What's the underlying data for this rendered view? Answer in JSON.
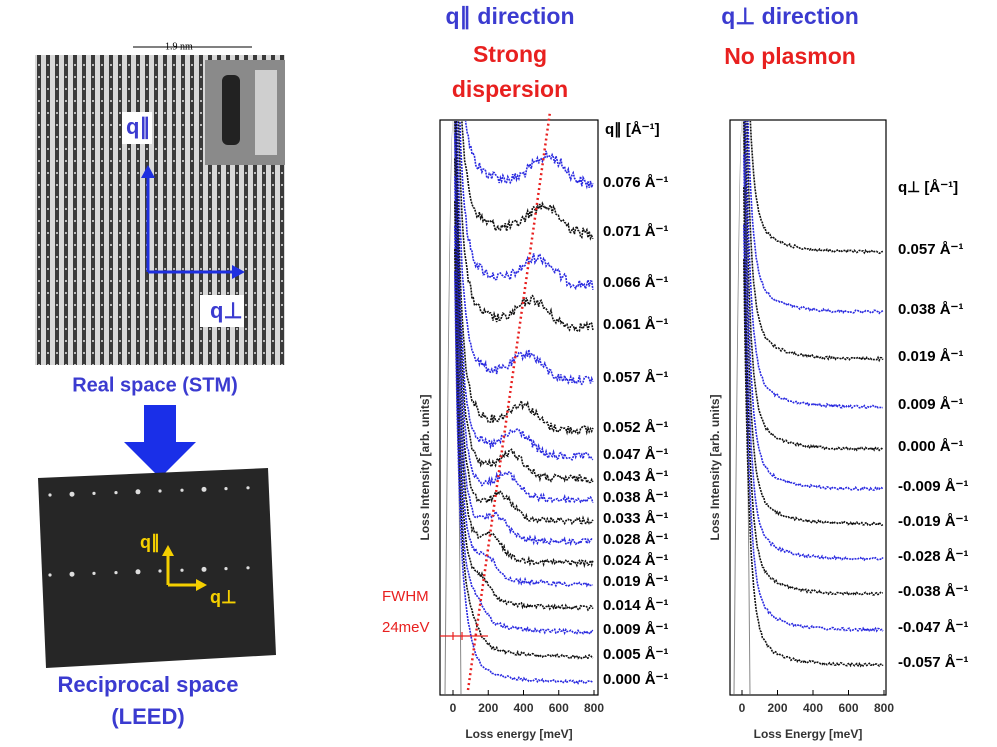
{
  "left": {
    "scale_bar": "1.9 nm",
    "q_par": "q∥",
    "q_perp": "q⊥",
    "real_space_label": "Real space (STM)",
    "leed_q_par": "q∥",
    "leed_q_perp": "q⊥",
    "reciprocal_label_1": "Reciprocal space",
    "reciprocal_label_2": "(LEED)"
  },
  "panels": [
    {
      "title": "q∥ direction",
      "subtitle_1": "Strong",
      "subtitle_2": "dispersion",
      "y_axis_label": "Loss Intensity [arb. units]",
      "x_axis_label": "Loss energy [meV]",
      "x_ticks": [
        0,
        200,
        400,
        600,
        800
      ],
      "series_header": "q∥ [Å⁻¹]",
      "series_labels": [
        "0.076 Å⁻¹",
        "0.071 Å⁻¹",
        "0.066 Å⁻¹",
        "0.061 Å⁻¹",
        "0.057 Å⁻¹",
        "0.052 Å⁻¹",
        "0.047 Å⁻¹",
        "0.043 Å⁻¹",
        "0.038 Å⁻¹",
        "0.033 Å⁻¹",
        "0.028 Å⁻¹",
        "0.024 Å⁻¹",
        "0.019 Å⁻¹",
        "0.014 Å⁻¹",
        "0.009 Å⁻¹",
        "0.005 Å⁻¹",
        "0.000 Å⁻¹"
      ],
      "annotation_1": "FWHM",
      "annotation_2": "24meV"
    },
    {
      "title": "q⊥ direction",
      "subtitle_1": "No plasmon",
      "y_axis_label": "Loss Intensity [arb. units]",
      "x_axis_label": "Loss Energy [meV]",
      "x_ticks": [
        0,
        200,
        400,
        600,
        800
      ],
      "series_header": "q⊥ [Å⁻¹]",
      "series_labels": [
        "0.057 Å⁻¹",
        "0.038 Å⁻¹",
        "0.019 Å⁻¹",
        "0.009 Å⁻¹",
        "0.000 Å⁻¹",
        "-0.009 Å⁻¹",
        "-0.019 Å⁻¹",
        "-0.028 Å⁻¹",
        "-0.038 Å⁻¹",
        "-0.047 Å⁻¹",
        "-0.057 Å⁻¹"
      ]
    }
  ]
}
